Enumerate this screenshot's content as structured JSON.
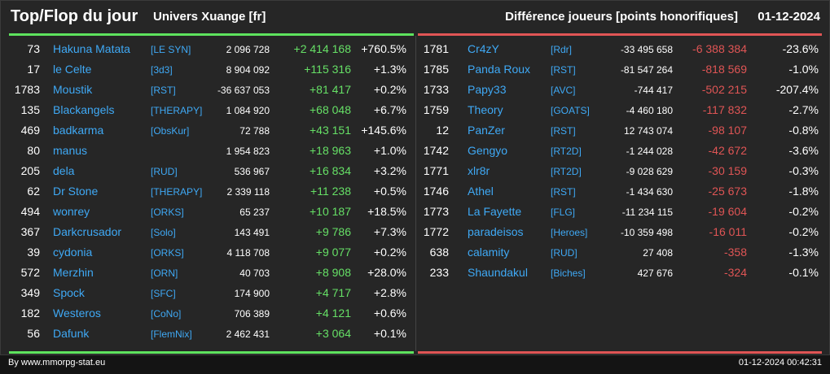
{
  "header": {
    "title": "Top/Flop du jour",
    "universe": "Univers Xuange [fr]",
    "metric": "Différence joueurs [points honorifiques]",
    "date": "01-12-2024"
  },
  "colors": {
    "positive": "#66e066",
    "negative": "#e05555",
    "link": "#3fa9f5",
    "top_rule": "#5ee35e",
    "flop_rule": "#e05555"
  },
  "top": [
    {
      "rank": "73",
      "name": "Hakuna Matata",
      "tag": "[LE SYN]",
      "points": "2 096 728",
      "delta": "+2 414 168",
      "pct": "+760.5%"
    },
    {
      "rank": "17",
      "name": "le Celte",
      "tag": "[3d3]",
      "points": "8 904 092",
      "delta": "+115 316",
      "pct": "+1.3%"
    },
    {
      "rank": "1783",
      "name": "Moustik",
      "tag": "[RST]",
      "points": "-36 637 053",
      "delta": "+81 417",
      "pct": "+0.2%"
    },
    {
      "rank": "135",
      "name": "Blackangels",
      "tag": "[THERAPY]",
      "points": "1 084 920",
      "delta": "+68 048",
      "pct": "+6.7%"
    },
    {
      "rank": "469",
      "name": "badkarma",
      "tag": "[ObsKur]",
      "points": "72 788",
      "delta": "+43 151",
      "pct": "+145.6%"
    },
    {
      "rank": "80",
      "name": "manus",
      "tag": "",
      "points": "1 954 823",
      "delta": "+18 963",
      "pct": "+1.0%"
    },
    {
      "rank": "205",
      "name": "dela",
      "tag": "[RUD]",
      "points": "536 967",
      "delta": "+16 834",
      "pct": "+3.2%"
    },
    {
      "rank": "62",
      "name": "Dr Stone",
      "tag": "[THERAPY]",
      "points": "2 339 118",
      "delta": "+11 238",
      "pct": "+0.5%"
    },
    {
      "rank": "494",
      "name": "wonrey",
      "tag": "[ORKS]",
      "points": "65 237",
      "delta": "+10 187",
      "pct": "+18.5%"
    },
    {
      "rank": "367",
      "name": "Darkcrusador",
      "tag": "[Solo]",
      "points": "143 491",
      "delta": "+9 786",
      "pct": "+7.3%"
    },
    {
      "rank": "39",
      "name": "cydonia",
      "tag": "[ORKS]",
      "points": "4 118 708",
      "delta": "+9 077",
      "pct": "+0.2%"
    },
    {
      "rank": "572",
      "name": "Merzhin",
      "tag": "[ORN]",
      "points": "40 703",
      "delta": "+8 908",
      "pct": "+28.0%"
    },
    {
      "rank": "349",
      "name": "Spock",
      "tag": "[SFC]",
      "points": "174 900",
      "delta": "+4 717",
      "pct": "+2.8%"
    },
    {
      "rank": "182",
      "name": "Westeros",
      "tag": "[CoNo]",
      "points": "706 389",
      "delta": "+4 121",
      "pct": "+0.6%"
    },
    {
      "rank": "56",
      "name": "Dafunk",
      "tag": "[FlemNix]",
      "points": "2 462 431",
      "delta": "+3 064",
      "pct": "+0.1%"
    }
  ],
  "flop": [
    {
      "rank": "1781",
      "name": "Cr4zY",
      "tag": "[Rdr]",
      "points": "-33 495 658",
      "delta": "-6 388 384",
      "pct": "-23.6%"
    },
    {
      "rank": "1785",
      "name": "Panda Roux",
      "tag": "[RST]",
      "points": "-81 547 264",
      "delta": "-818 569",
      "pct": "-1.0%"
    },
    {
      "rank": "1733",
      "name": "Papy33",
      "tag": "[AVC]",
      "points": "-744 417",
      "delta": "-502 215",
      "pct": "-207.4%"
    },
    {
      "rank": "1759",
      "name": "Theory",
      "tag": "[GOATS]",
      "points": "-4 460 180",
      "delta": "-117 832",
      "pct": "-2.7%"
    },
    {
      "rank": "12",
      "name": "PanZer",
      "tag": "[RST]",
      "points": "12 743 074",
      "delta": "-98 107",
      "pct": "-0.8%"
    },
    {
      "rank": "1742",
      "name": "Gengyo",
      "tag": "[RT2D]",
      "points": "-1 244 028",
      "delta": "-42 672",
      "pct": "-3.6%"
    },
    {
      "rank": "1771",
      "name": "xlr8r",
      "tag": "[RT2D]",
      "points": "-9 028 629",
      "delta": "-30 159",
      "pct": "-0.3%"
    },
    {
      "rank": "1746",
      "name": "Athel",
      "tag": "[RST]",
      "points": "-1 434 630",
      "delta": "-25 673",
      "pct": "-1.8%"
    },
    {
      "rank": "1773",
      "name": "La Fayette",
      "tag": "[FLG]",
      "points": "-11 234 115",
      "delta": "-19 604",
      "pct": "-0.2%"
    },
    {
      "rank": "1772",
      "name": "paradeisos",
      "tag": "[Heroes]",
      "points": "-10 359 498",
      "delta": "-16 011",
      "pct": "-0.2%"
    },
    {
      "rank": "638",
      "name": "calamity",
      "tag": "[RUD]",
      "points": "27 408",
      "delta": "-358",
      "pct": "-1.3%"
    },
    {
      "rank": "233",
      "name": "Shaundakul",
      "tag": "[Biches]",
      "points": "427 676",
      "delta": "-324",
      "pct": "-0.1%"
    }
  ],
  "footer": {
    "credit": "By www.mmorpg-stat.eu",
    "timestamp": "01-12-2024 00:42:31"
  }
}
